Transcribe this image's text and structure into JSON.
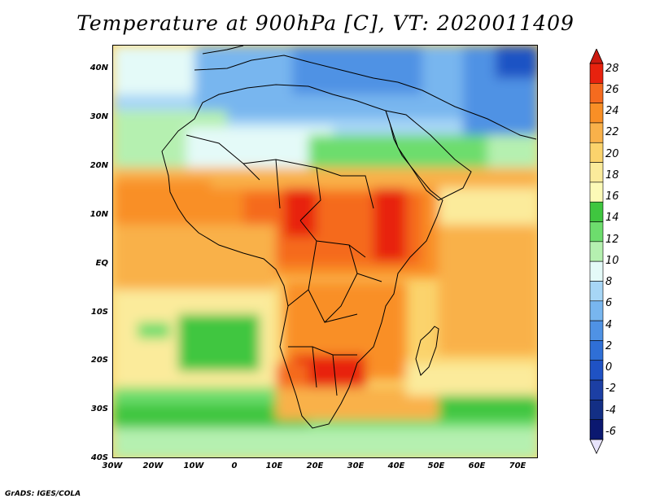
{
  "title": "Temperature at 900hPa [C], VT: 2020011409",
  "footer": "GrADS: IGES/COLA",
  "map": {
    "lat_labels": [
      "40N",
      "30N",
      "20N",
      "10N",
      "EQ",
      "10S",
      "20S",
      "30S",
      "40S"
    ],
    "lon_labels": [
      "30W",
      "20W",
      "10W",
      "0",
      "10E",
      "20E",
      "30E",
      "40E",
      "50E",
      "60E",
      "70E"
    ]
  },
  "colorbar": {
    "labels": [
      "28",
      "26",
      "24",
      "22",
      "20",
      "18",
      "16",
      "14",
      "12",
      "10",
      "8",
      "6",
      "4",
      "2",
      "0",
      "-2",
      "-4",
      "-6"
    ],
    "colors": [
      "#e8220e",
      "#f56b1f",
      "#f98f26",
      "#f9b14a",
      "#fbd36c",
      "#fbeb9b",
      "#fcfab7",
      "#3fc63f",
      "#6ddd6d",
      "#b5f0b0",
      "#e4faf8",
      "#a7d6f6",
      "#78b6ef",
      "#4f92e4",
      "#2f6fd6",
      "#1f52c4",
      "#1c3fa4",
      "#132f85",
      "#0b1870"
    ],
    "over_color": "#cc1a10",
    "under_color": "#e7e3fb"
  }
}
